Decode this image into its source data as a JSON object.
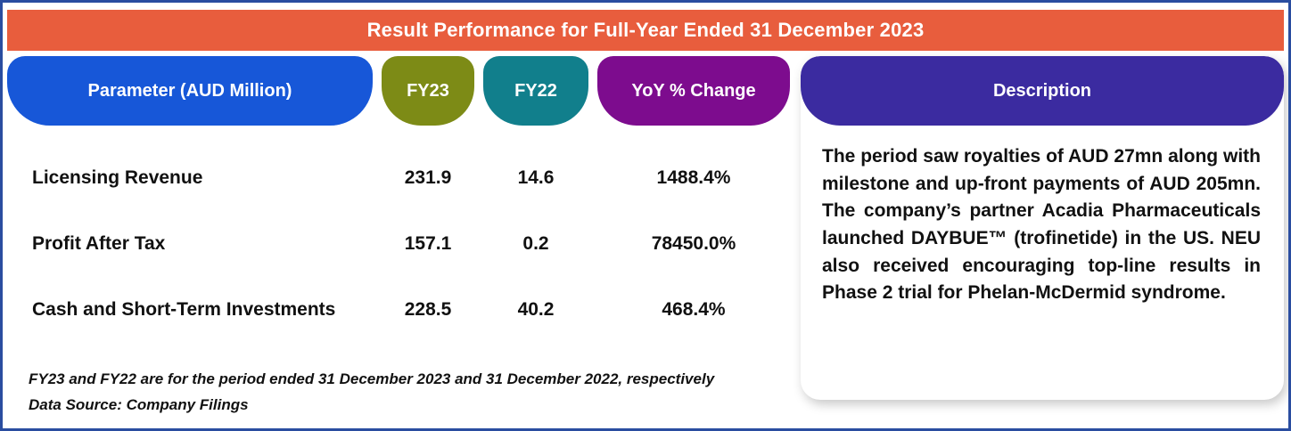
{
  "banner": {
    "title": "Result Performance for Full-Year Ended 31 December 2023"
  },
  "table": {
    "headers": {
      "parameter": "Parameter (AUD Million)",
      "fy23": "FY23",
      "fy22": "FY22",
      "yoy": "YoY % Change"
    },
    "rows": [
      {
        "parameter": "Licensing Revenue",
        "fy23": "231.9",
        "fy22": "14.6",
        "yoy": "1488.4%"
      },
      {
        "parameter": "Profit After Tax",
        "fy23": "157.1",
        "fy22": "0.2",
        "yoy": "78450.0%"
      },
      {
        "parameter": "Cash and Short-Term Investments",
        "fy23": "228.5",
        "fy22": "40.2",
        "yoy": "468.4%"
      }
    ]
  },
  "footnotes": {
    "period_note": "FY23 and FY22 are for the period ended 31 December 2023 and 31 December 2022, respectively",
    "source_note": "Data Source: Company Filings"
  },
  "description": {
    "header": "Description",
    "body": "The period saw royalties of AUD 27mn along with milestone and up-front payments of AUD 205mn. The company’s partner Acadia Pharmaceuticals launched DAYBUE™ (trofinetide) in the US. NEU also received encouraging top-line results in Phase 2 trial for Phelan-McDermid syndrome."
  },
  "colors": {
    "banner": "#E85D3D",
    "parameter_header": "#1757D8",
    "fy23_header": "#7D8B16",
    "fy22_header": "#117F8C",
    "yoy_header": "#7D0C8E",
    "description_header": "#3B2BA0",
    "frame_border": "#2A4DA0",
    "text": "#111111"
  },
  "chart_data": {
    "type": "table",
    "title": "Result Performance for Full-Year Ended 31 December 2023",
    "columns": [
      "Parameter (AUD Million)",
      "FY23",
      "FY22",
      "YoY % Change"
    ],
    "rows": [
      [
        "Licensing Revenue",
        231.9,
        14.6,
        "1488.4%"
      ],
      [
        "Profit After Tax",
        157.1,
        0.2,
        "78450.0%"
      ],
      [
        "Cash and Short-Term Investments",
        228.5,
        40.2,
        "468.4%"
      ]
    ],
    "notes": [
      "FY23 and FY22 are for the period ended 31 December 2023 and 31 December 2022, respectively",
      "Data Source: Company Filings"
    ],
    "description": "The period saw royalties of AUD 27mn along with milestone and up-front payments of AUD 205mn. The company’s partner Acadia Pharmaceuticals launched DAYBUE™ (trofinetide) in the US. NEU also received encouraging top-line results in Phase 2 trial for Phelan-McDermid syndrome."
  }
}
